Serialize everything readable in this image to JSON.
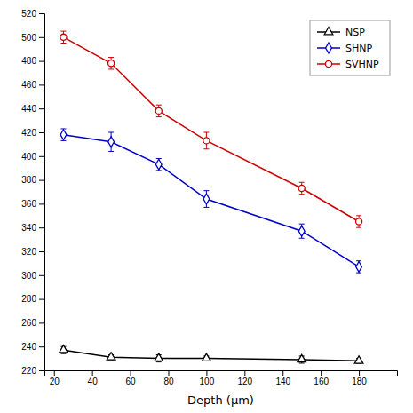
{
  "chart_data": {
    "type": "line",
    "xlabel": "Depth (μm)",
    "x": [
      25,
      50,
      75,
      100,
      150,
      180
    ],
    "series": [
      {
        "name": "NSP",
        "color": "#000000",
        "marker": "triangle",
        "values": [
          237,
          231,
          230,
          230,
          229,
          228
        ],
        "errors": [
          3,
          2,
          3,
          2,
          3,
          2
        ]
      },
      {
        "name": "SHNP",
        "color": "#0000cc",
        "marker": "diamond",
        "values": [
          418,
          412,
          393,
          364,
          337,
          307
        ],
        "errors": [
          5,
          8,
          5,
          7,
          6,
          5
        ]
      },
      {
        "name": "SVHNP",
        "color": "#cc0000",
        "marker": "circle",
        "values": [
          500,
          478,
          438,
          413,
          373,
          345
        ],
        "errors": [
          5,
          5,
          5,
          7,
          5,
          5
        ]
      }
    ],
    "xlim": [
      15,
      200
    ],
    "ylim": [
      220,
      520
    ],
    "xticks": [
      20,
      40,
      60,
      80,
      100,
      120,
      140,
      160,
      180
    ],
    "yticks": [
      220,
      240,
      260,
      280,
      300,
      320,
      340,
      360,
      380,
      400,
      420,
      440,
      460,
      480,
      500,
      520
    ],
    "grid": false,
    "legend": "upper right"
  }
}
